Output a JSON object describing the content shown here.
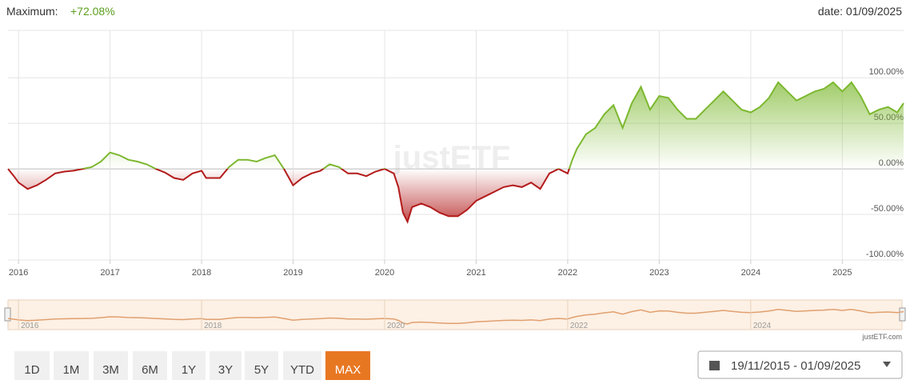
{
  "header": {
    "label": "Maximum:",
    "value": "+72.08%",
    "date": "date: 01/09/2025"
  },
  "watermark": "justETF",
  "credit": "justETF.com",
  "range_buttons": [
    "1D",
    "1M",
    "3M",
    "6M",
    "1Y",
    "3Y",
    "5Y",
    "YTD",
    "MAX"
  ],
  "active_range": "MAX",
  "date_range": "19/11/2015 - 01/09/2025",
  "chart_data": {
    "type": "line",
    "x": [
      2015.885,
      2015.95,
      2016.0,
      2016.1,
      2016.2,
      2016.3,
      2016.4,
      2016.5,
      2016.6,
      2016.7,
      2016.8,
      2016.9,
      2017.0,
      2017.1,
      2017.2,
      2017.3,
      2017.4,
      2017.5,
      2017.6,
      2017.7,
      2017.8,
      2017.9,
      2018.0,
      2018.05,
      2018.2,
      2018.3,
      2018.4,
      2018.5,
      2018.6,
      2018.7,
      2018.8,
      2018.9,
      2019.0,
      2019.1,
      2019.2,
      2019.3,
      2019.4,
      2019.5,
      2019.6,
      2019.7,
      2019.8,
      2019.9,
      2020.0,
      2020.1,
      2020.15,
      2020.2,
      2020.25,
      2020.3,
      2020.4,
      2020.5,
      2020.6,
      2020.7,
      2020.8,
      2020.9,
      2021.0,
      2021.1,
      2021.2,
      2021.3,
      2021.4,
      2021.5,
      2021.6,
      2021.7,
      2021.8,
      2021.9,
      2022.0,
      2022.05,
      2022.1,
      2022.2,
      2022.3,
      2022.4,
      2022.5,
      2022.6,
      2022.7,
      2022.8,
      2022.9,
      2023.0,
      2023.1,
      2023.2,
      2023.3,
      2023.4,
      2023.5,
      2023.6,
      2023.7,
      2023.8,
      2023.9,
      2024.0,
      2024.1,
      2024.2,
      2024.3,
      2024.4,
      2024.5,
      2024.6,
      2024.7,
      2024.8,
      2024.9,
      2025.0,
      2025.1,
      2025.2,
      2025.3,
      2025.4,
      2025.5,
      2025.6,
      2025.67
    ],
    "values": [
      0,
      -8,
      -15,
      -22,
      -18,
      -12,
      -5,
      -3,
      -2,
      0,
      2,
      8,
      18,
      15,
      10,
      8,
      5,
      0,
      -4,
      -10,
      -12,
      -5,
      -2,
      -10,
      -10,
      2,
      10,
      10,
      8,
      12,
      15,
      0,
      -18,
      -10,
      -5,
      -2,
      5,
      2,
      -5,
      -5,
      -8,
      -3,
      0,
      -5,
      -20,
      -48,
      -58,
      -42,
      -38,
      -42,
      -48,
      -52,
      -52,
      -45,
      -35,
      -30,
      -25,
      -20,
      -18,
      -20,
      -15,
      -22,
      -5,
      0,
      -5,
      10,
      22,
      38,
      45,
      60,
      70,
      45,
      72,
      90,
      65,
      80,
      78,
      65,
      55,
      55,
      65,
      75,
      85,
      75,
      65,
      62,
      68,
      78,
      95,
      85,
      75,
      80,
      85,
      88,
      95,
      85,
      95,
      80,
      60,
      65,
      68,
      62,
      72.08
    ],
    "color_positive": "#7cb82f",
    "color_negative": "#b31b1b",
    "navigator_color": "#e0a070",
    "xlim": [
      2015.885,
      2025.67
    ],
    "xticks": [
      2016,
      2017,
      2018,
      2019,
      2020,
      2021,
      2022,
      2023,
      2024,
      2025
    ],
    "navigator_xticks": [
      2016,
      2018,
      2020,
      2022,
      2024
    ],
    "ylim": [
      -100,
      152
    ],
    "yticks": [
      {
        "value": -100,
        "label": "-100.00%"
      },
      {
        "value": -50,
        "label": "-50.00%"
      },
      {
        "value": 0,
        "label": "0.00%"
      },
      {
        "value": 50,
        "label": "50.00%"
      },
      {
        "value": 100,
        "label": "100.00%"
      }
    ],
    "grid": true
  }
}
